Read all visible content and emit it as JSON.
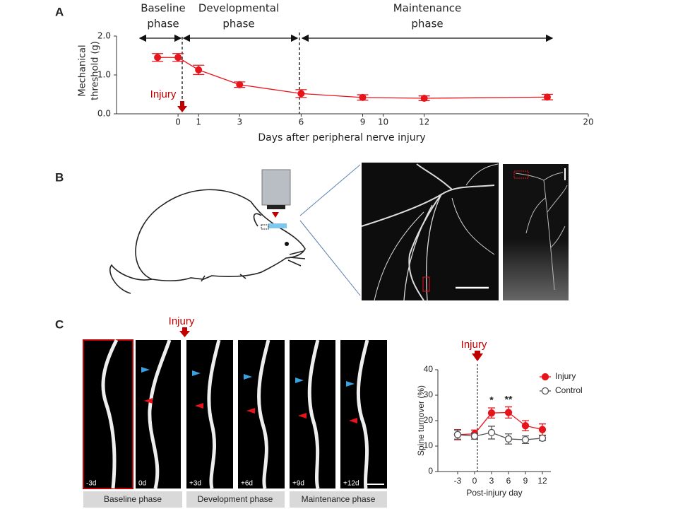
{
  "panel_labels": [
    "A",
    "B",
    "C"
  ],
  "chart_data": [
    {
      "type": "line",
      "phases": [
        [
          "Baseline",
          "phase"
        ],
        [
          "Developmental",
          "phase"
        ],
        [
          "Maintenance",
          "phase"
        ]
      ],
      "injury": "Injury",
      "x": [
        -1,
        0,
        1,
        3,
        6,
        9,
        12,
        18
      ],
      "values": [
        1.45,
        1.45,
        1.13,
        0.75,
        0.52,
        0.42,
        0.4,
        0.43
      ],
      "errors": [
        0.1,
        0.1,
        0.12,
        0.07,
        0.1,
        0.07,
        0.06,
        0.07
      ],
      "color": "#e8141b",
      "xlim": [
        -3,
        20
      ],
      "ylim": [
        0,
        2
      ],
      "xticks": [
        0,
        1,
        3,
        6,
        9,
        10,
        12,
        20
      ],
      "yticks": [
        {
          "value": 0,
          "label": "0.0"
        },
        {
          "value": 1,
          "label": "1.0"
        },
        {
          "value": 2,
          "label": "2.0"
        }
      ],
      "ylabel": [
        "Mechanical",
        "threshold (g)"
      ],
      "xlabel": "Days after peripheral nerve injury"
    },
    {
      "type": "line",
      "injury": "Injury",
      "x": [
        -3,
        0,
        3,
        6,
        9,
        12
      ],
      "series": [
        {
          "name": "Injury",
          "color": "#e8141b",
          "marker": "filled",
          "values": [
            14.5,
            14.8,
            23,
            23.2,
            18,
            16.5
          ],
          "errors": [
            2,
            1.5,
            2,
            2.2,
            2,
            2.2
          ]
        },
        {
          "name": "Control",
          "color": "#555555",
          "marker": "open",
          "values": [
            14.5,
            13.9,
            15.3,
            12.8,
            12.5,
            13.1
          ],
          "errors": [
            1.8,
            1.2,
            2.5,
            2,
            1.5,
            1
          ]
        }
      ],
      "annotations": [
        {
          "x": 3,
          "text": "*"
        },
        {
          "x": 6,
          "text": "**"
        }
      ],
      "xlim": [
        -6.5,
        13.5
      ],
      "ylim": [
        0,
        40
      ],
      "xticks": [
        -3,
        0,
        3,
        6,
        9,
        12
      ],
      "yticks": [
        0,
        10,
        20,
        30,
        40
      ],
      "ylabel": "Spine turnover (%)",
      "xlabel": "Post-injury day",
      "legend": "upper right"
    }
  ],
  "imaging": {
    "injury": "Injury",
    "frames": [
      "-3d",
      "0d",
      "+3d",
      "+6d",
      "+9d",
      "+12d"
    ],
    "phases": [
      "Baseline phase",
      "Development phase",
      "Maintenance phase"
    ]
  }
}
